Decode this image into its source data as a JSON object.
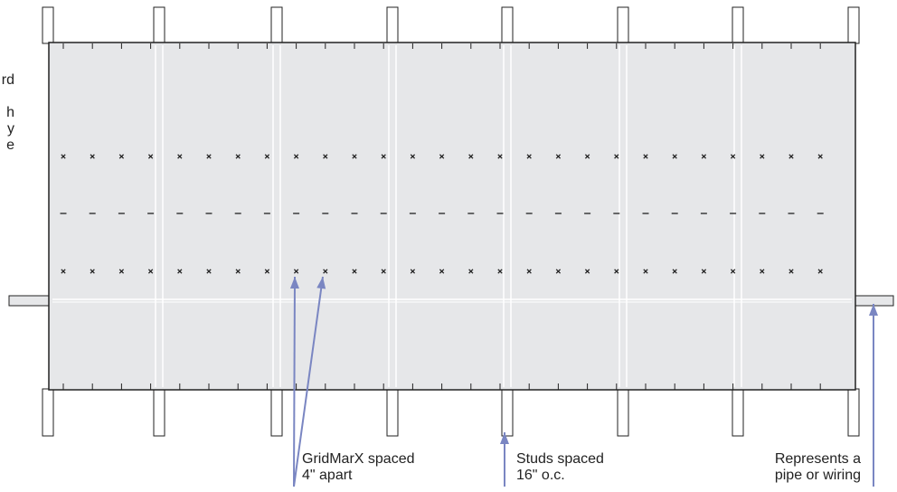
{
  "colors": {
    "board": "#e6e7e9",
    "outline": "#222222",
    "stud_edge": "#ffffff",
    "arrow": "#7a86c2"
  },
  "left_label": {
    "lines": [
      "rd",
      "",
      "h",
      "y",
      "e"
    ]
  },
  "labels": {
    "gridmarx": {
      "lines": [
        "GridMarX spaced",
        "4\" apart"
      ]
    },
    "studs": {
      "lines": [
        "Studs spaced",
        "16\" o.c."
      ]
    },
    "pipe": {
      "lines": [
        "Represents a",
        "pipe or wiring"
      ]
    }
  }
}
